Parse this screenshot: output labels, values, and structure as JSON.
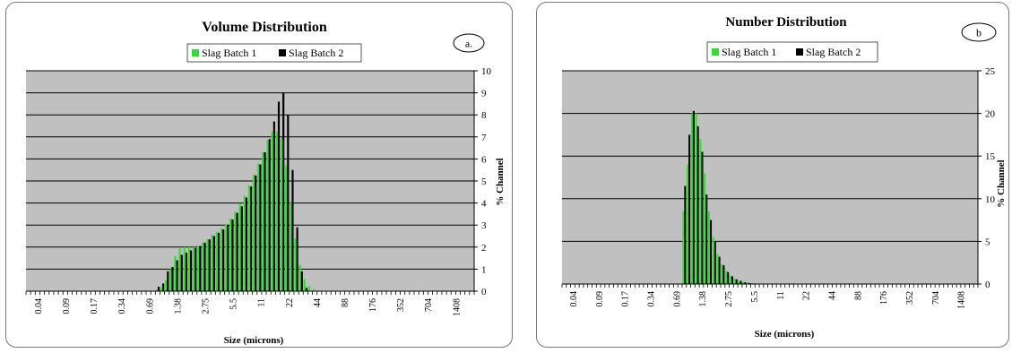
{
  "chart_data": [
    {
      "type": "bar",
      "title": "Volume Distribution",
      "panel_label": "a.",
      "xlabel": "Size (microns)",
      "ylabel": "% Channel",
      "ylim": [
        0,
        10
      ],
      "yticks": [
        0,
        1,
        2,
        3,
        4,
        5,
        6,
        7,
        8,
        9,
        10
      ],
      "xtick_labels": [
        "0.04",
        "0.09",
        "0.17",
        "0.34",
        "0.69",
        "1.38",
        "2.75",
        "5.5",
        "11",
        "22",
        "44",
        "88",
        "176",
        "352",
        "704",
        "1408"
      ],
      "legend": [
        "Slag Batch 1",
        "Slag Batch 2"
      ],
      "legend_position": "top",
      "grid": true,
      "colors": {
        "series1": "#33dd33",
        "series2": "#000000",
        "plot_bg": "#c0c0c0"
      },
      "series": [
        {
          "name": "Slag Batch 1",
          "values": [
            0,
            0,
            0,
            0,
            0,
            0,
            0,
            0,
            0,
            0,
            0,
            0,
            0,
            0,
            0,
            0,
            0,
            0,
            0,
            0,
            0,
            0,
            0,
            0,
            0,
            0,
            0,
            0,
            0.05,
            0.2,
            0.5,
            1.0,
            1.6,
            1.95,
            2.0,
            2.0,
            2.0,
            2.05,
            2.2,
            2.35,
            2.55,
            2.7,
            2.85,
            3.05,
            3.3,
            3.6,
            3.95,
            4.35,
            4.8,
            5.3,
            5.8,
            6.3,
            6.85,
            7.25,
            7.25,
            6.95,
            5.7,
            4.05,
            2.4,
            1.2,
            0.55,
            0.25,
            0.1,
            0.03,
            0,
            0,
            0,
            0,
            0,
            0,
            0,
            0,
            0,
            0,
            0,
            0,
            0,
            0,
            0,
            0,
            0,
            0,
            0,
            0,
            0,
            0,
            0,
            0,
            0,
            0,
            0,
            0,
            0,
            0,
            0,
            0,
            0
          ]
        },
        {
          "name": "Slag Batch 2",
          "values": [
            0,
            0,
            0,
            0,
            0,
            0,
            0,
            0,
            0,
            0,
            0,
            0,
            0,
            0,
            0,
            0,
            0,
            0,
            0,
            0,
            0,
            0,
            0,
            0,
            0,
            0,
            0,
            0,
            0.2,
            0.35,
            0.9,
            1.1,
            1.4,
            1.65,
            1.75,
            1.85,
            1.95,
            2.05,
            2.2,
            2.35,
            2.5,
            2.65,
            2.8,
            3.0,
            3.25,
            3.55,
            3.85,
            4.25,
            4.75,
            5.25,
            5.75,
            6.3,
            6.9,
            7.7,
            8.6,
            9.0,
            8.0,
            5.5,
            2.9,
            0.9,
            0.15,
            0,
            0,
            0,
            0,
            0,
            0,
            0,
            0,
            0,
            0,
            0,
            0,
            0,
            0,
            0,
            0,
            0,
            0,
            0,
            0,
            0,
            0,
            0,
            0,
            0,
            0,
            0,
            0,
            0,
            0,
            0,
            0,
            0,
            0,
            0,
            0
          ]
        }
      ]
    },
    {
      "type": "bar",
      "title": "Number Distribution",
      "panel_label": "b",
      "xlabel": "Size (microns)",
      "ylabel": "% Channel",
      "ylim": [
        0,
        25
      ],
      "yticks": [
        0,
        5,
        10,
        15,
        20,
        25
      ],
      "xtick_labels": [
        "0.04",
        "0.09",
        "0.17",
        "0.34",
        "0.69",
        "1.38",
        "2.75",
        "5.5",
        "11",
        "22",
        "44",
        "88",
        "176",
        "352",
        "704",
        "1408"
      ],
      "legend": [
        "Slag Batch 1",
        "Slag Batch 2"
      ],
      "legend_position": "top",
      "grid": true,
      "colors": {
        "series1": "#33dd33",
        "series2": "#000000",
        "plot_bg": "#c0c0c0"
      },
      "series": [
        {
          "name": "Slag Batch 1",
          "values": [
            0,
            0,
            0,
            0,
            0,
            0,
            0,
            0,
            0,
            0,
            0,
            0,
            0,
            0,
            0,
            0,
            0,
            0,
            0,
            0,
            0,
            0,
            0,
            0,
            0,
            0,
            0,
            0,
            8.5,
            14.0,
            20.0,
            20.0,
            17.0,
            13.0,
            8.5,
            5.5,
            3.5,
            2.3,
            1.5,
            1.0,
            0.6,
            0.4,
            0.25,
            0.15,
            0.1,
            0.05,
            0.03,
            0,
            0,
            0,
            0,
            0,
            0,
            0,
            0,
            0,
            0,
            0,
            0,
            0,
            0,
            0,
            0,
            0,
            0,
            0,
            0,
            0,
            0,
            0,
            0,
            0,
            0,
            0,
            0,
            0,
            0,
            0,
            0,
            0,
            0,
            0,
            0,
            0,
            0,
            0,
            0,
            0,
            0,
            0,
            0,
            0,
            0,
            0,
            0,
            0,
            0
          ]
        },
        {
          "name": "Slag Batch 2",
          "values": [
            0,
            0,
            0,
            0,
            0,
            0,
            0,
            0,
            0,
            0,
            0,
            0,
            0,
            0,
            0,
            0,
            0,
            0,
            0,
            0,
            0,
            0,
            0,
            0,
            0,
            0,
            0,
            0,
            11.5,
            17.5,
            20.3,
            18.5,
            15.5,
            10.5,
            7.5,
            5.0,
            3.2,
            2.2,
            1.4,
            0.9,
            0.55,
            0.35,
            0.2,
            0.12,
            0.07,
            0.03,
            0,
            0,
            0,
            0,
            0,
            0,
            0,
            0,
            0,
            0,
            0,
            0,
            0,
            0,
            0,
            0,
            0,
            0,
            0,
            0,
            0,
            0,
            0,
            0,
            0,
            0,
            0,
            0,
            0,
            0,
            0,
            0,
            0,
            0,
            0,
            0,
            0,
            0,
            0,
            0,
            0,
            0,
            0,
            0,
            0,
            0,
            0,
            0,
            0,
            0,
            0
          ]
        }
      ]
    }
  ]
}
